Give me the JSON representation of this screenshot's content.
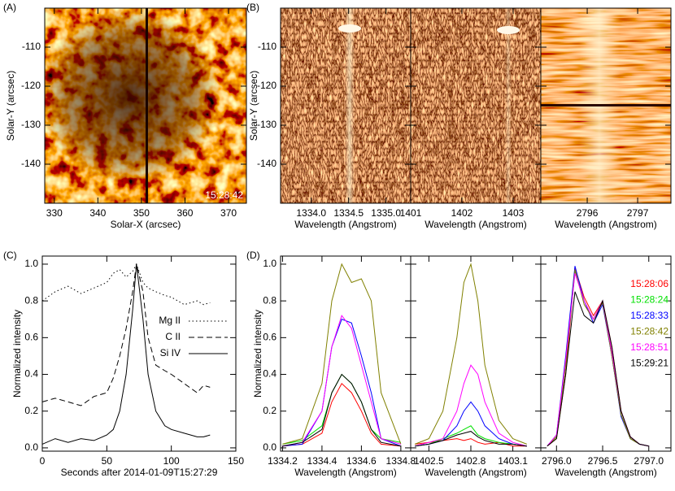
{
  "chart_data": [
    {
      "type": "image",
      "panel": "(A)",
      "xlabel": "Solar-X (arcsec)",
      "ylabel": "Solar-Y (arcsec)",
      "xlim": [
        327.8,
        374.1
      ],
      "xticks": [
        330,
        340,
        350,
        360,
        370
      ],
      "ylim": [
        -150,
        -100
      ],
      "yticks": [
        -110,
        -120,
        -130,
        -140
      ],
      "annotation": "15:28:42"
    },
    {
      "type": "image-strip",
      "panel": "(B)",
      "ylabel": "Solar-Y (arcsec)",
      "ylim": [
        -150,
        -100
      ],
      "yticks": [
        -110,
        -120,
        -130,
        -140
      ],
      "panels": [
        {
          "xlabel": "Wavelength (Angstrom)",
          "xlim": [
            1333.59,
            1335.33
          ],
          "xticks": [
            {
              "value": 1334.0,
              "label": "1334.0"
            },
            1334.5,
            {
              "value": 1335.0,
              "label": "1335.0"
            }
          ]
        },
        {
          "xlabel": "Wavelength (Angstrom)",
          "xlim": [
            1401.0,
            1403.54
          ],
          "xticks": [
            1401,
            1402,
            1403
          ]
        },
        {
          "xlabel": "Wavelength (Angstrom)",
          "xlim": [
            2795.08,
            2797.66
          ],
          "xticks": [
            2796,
            2797
          ]
        }
      ]
    },
    {
      "type": "line",
      "panel": "(C)",
      "xlabel": "Seconds after 2014-01-09T15:27:29",
      "ylabel": "Normalized intensity",
      "xlim": [
        0,
        150
      ],
      "xticks": [
        0,
        50,
        100,
        150
      ],
      "ylim": [
        -0.018,
        1.044
      ],
      "yticks": [
        {
          "value": 0,
          "label": "0.0"
        },
        0.2,
        0.4,
        0.6,
        0.8,
        {
          "value": 1,
          "label": "1.0"
        }
      ],
      "legend": "right",
      "x": [
        0,
        10,
        20,
        30,
        40,
        50,
        55,
        60,
        65,
        70,
        73,
        78,
        82,
        88,
        95,
        100,
        110,
        120,
        125,
        130
      ],
      "series": [
        {
          "name": "Mg II",
          "color": "#000000",
          "style": "dotted",
          "values": [
            0.8,
            0.85,
            0.88,
            0.84,
            0.87,
            0.9,
            0.95,
            0.97,
            0.93,
            0.96,
            1.0,
            0.9,
            0.87,
            0.85,
            0.83,
            0.82,
            0.78,
            0.8,
            0.78,
            0.79
          ]
        },
        {
          "name": "C II",
          "color": "#000000",
          "style": "dashed",
          "values": [
            0.25,
            0.27,
            0.25,
            0.23,
            0.28,
            0.3,
            0.38,
            0.5,
            0.65,
            0.85,
            1.0,
            0.85,
            0.6,
            0.45,
            0.42,
            0.4,
            0.35,
            0.3,
            0.34,
            0.33
          ]
        },
        {
          "name": "Si IV",
          "color": "#000000",
          "style": "solid",
          "values": [
            0.02,
            0.05,
            0.03,
            0.05,
            0.04,
            0.07,
            0.1,
            0.2,
            0.4,
            0.75,
            1.0,
            0.7,
            0.4,
            0.2,
            0.12,
            0.1,
            0.08,
            0.06,
            0.06,
            0.07
          ]
        }
      ]
    },
    {
      "type": "multi-line",
      "panel": "(D)",
      "ylabel": "Normalized intensity",
      "ylim": [
        -0.018,
        1.044
      ],
      "yticks": [
        {
          "value": 0,
          "label": "0.0"
        },
        0.2,
        0.4,
        0.6,
        0.8,
        {
          "value": 1,
          "label": "1.0"
        }
      ],
      "legend": "right",
      "series": [
        {
          "name": "15:28:06",
          "color": "#ff0000"
        },
        {
          "name": "15:28:24",
          "color": "#00e000"
        },
        {
          "name": "15:28:33",
          "color": "#0000ff"
        },
        {
          "name": "15:28:42",
          "color": "#808000"
        },
        {
          "name": "15:28:51",
          "color": "#ff00ff"
        },
        {
          "name": "15:29:21",
          "color": "#000000"
        }
      ],
      "panels": [
        {
          "xlabel": "Wavelength (Angstrom)",
          "xlim": [
            1334.19,
            1334.85
          ],
          "xticks": [
            1334.2,
            1334.4,
            1334.6,
            1334.8
          ],
          "x": [
            1334.2,
            1334.3,
            1334.4,
            1334.45,
            1334.5,
            1334.55,
            1334.6,
            1334.65,
            1334.7,
            1334.8
          ],
          "series": [
            {
              "values": [
                0.01,
                0.02,
                0.08,
                0.25,
                0.35,
                0.3,
                0.2,
                0.08,
                0.02,
                0.01
              ]
            },
            {
              "values": [
                0.02,
                0.04,
                0.12,
                0.3,
                0.4,
                0.35,
                0.25,
                0.1,
                0.05,
                0.03
              ]
            },
            {
              "values": [
                0.01,
                0.02,
                0.2,
                0.55,
                0.7,
                0.68,
                0.5,
                0.3,
                0.05,
                0.01
              ]
            },
            {
              "values": [
                0.02,
                0.05,
                0.35,
                0.8,
                1.0,
                0.9,
                0.92,
                0.8,
                0.3,
                0.02
              ]
            },
            {
              "values": [
                0.01,
                0.03,
                0.2,
                0.55,
                0.72,
                0.65,
                0.45,
                0.25,
                0.05,
                0.02
              ]
            },
            {
              "values": [
                0.01,
                0.03,
                0.1,
                0.3,
                0.4,
                0.35,
                0.25,
                0.1,
                0.03,
                0.01
              ]
            }
          ]
        },
        {
          "xlabel": "Wavelength (Angstrom)",
          "xlim": [
            1402.37,
            1403.3
          ],
          "xticks": [
            1402.5,
            1402.8,
            1403.1
          ],
          "x": [
            1402.4,
            1402.5,
            1402.6,
            1402.7,
            1402.75,
            1402.8,
            1402.85,
            1402.9,
            1403.0,
            1403.1,
            1403.2
          ],
          "series": [
            {
              "values": [
                0.02,
                0.03,
                0.04,
                0.05,
                0.04,
                0.05,
                0.03,
                0.02,
                0.03,
                0.01,
                0.01
              ]
            },
            {
              "values": [
                0.01,
                0.02,
                0.05,
                0.08,
                0.1,
                0.12,
                0.07,
                0.05,
                0.03,
                0.02,
                0.01
              ]
            },
            {
              "values": [
                0.01,
                0.02,
                0.04,
                0.12,
                0.2,
                0.25,
                0.2,
                0.12,
                0.05,
                0.02,
                0.01
              ]
            },
            {
              "values": [
                0.02,
                0.05,
                0.2,
                0.6,
                0.9,
                1.0,
                0.8,
                0.45,
                0.15,
                0.05,
                0.02
              ]
            },
            {
              "values": [
                0.01,
                0.03,
                0.05,
                0.2,
                0.35,
                0.45,
                0.4,
                0.25,
                0.08,
                0.03,
                0.01
              ]
            },
            {
              "values": [
                0.01,
                0.02,
                0.04,
                0.07,
                0.08,
                0.09,
                0.06,
                0.04,
                0.02,
                0.02,
                0.01
              ]
            }
          ]
        },
        {
          "xlabel": "Wavelength (Angstrom)",
          "xlim": [
            2795.83,
            2797.24
          ],
          "xticks": [
            {
              "value": 2796.0,
              "label": "2796.0"
            },
            2796.5,
            {
              "value": 2797.0,
              "label": "2797.0"
            }
          ],
          "x": [
            2795.9,
            2796.0,
            2796.1,
            2796.2,
            2796.3,
            2796.4,
            2796.5,
            2796.6,
            2796.7,
            2796.8,
            2796.9,
            2797.0
          ],
          "series": [
            {
              "values": [
                0.01,
                0.05,
                0.4,
                0.98,
                0.82,
                0.72,
                0.8,
                0.55,
                0.2,
                0.06,
                0.02,
                0.01
              ]
            },
            {
              "values": [
                0.01,
                0.06,
                0.45,
                0.96,
                0.8,
                0.7,
                0.8,
                0.5,
                0.18,
                0.05,
                0.02,
                0.01
              ]
            },
            {
              "values": [
                0.01,
                0.07,
                0.5,
                0.99,
                0.8,
                0.68,
                0.78,
                0.5,
                0.17,
                0.05,
                0.02,
                0.01
              ]
            },
            {
              "values": [
                0.01,
                0.06,
                0.45,
                0.97,
                0.78,
                0.7,
                0.79,
                0.5,
                0.18,
                0.05,
                0.02,
                0.01
              ]
            },
            {
              "values": [
                0.01,
                0.07,
                0.48,
                0.95,
                0.8,
                0.7,
                0.8,
                0.52,
                0.2,
                0.06,
                0.02,
                0.01
              ]
            },
            {
              "values": [
                0.01,
                0.05,
                0.4,
                0.85,
                0.72,
                0.68,
                0.8,
                0.55,
                0.2,
                0.06,
                0.02,
                0.01
              ]
            }
          ]
        }
      ]
    }
  ]
}
